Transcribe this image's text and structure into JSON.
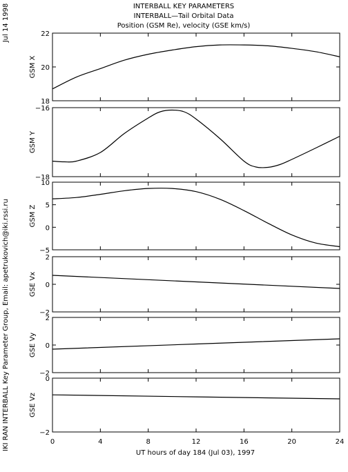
{
  "header": {
    "date_stamp": "Jul 14 1998",
    "title_line1": "INTERBALL KEY PARAMETERS",
    "title_line2": "INTERBALL—Tail Orbital Data",
    "title_line3": "Position (GSM Re), velocity (GSE km/s)"
  },
  "side_credit": "IKI RAN INTERBALL Key Parameter Group, Email: apetrukovich@iki.rssi.ru",
  "xaxis": {
    "label": "UT hours of day 184 (Jul 03), 1997",
    "ticks": [
      0,
      4,
      8,
      12,
      16,
      20,
      24
    ],
    "tick_labels": [
      "0",
      "4",
      "8",
      "12",
      "16",
      "20",
      "24"
    ],
    "range": [
      0,
      24
    ]
  },
  "chart_data": [
    {
      "type": "line",
      "ylabel": "GSM X",
      "ylim": [
        18,
        22
      ],
      "yticks": [
        18,
        20,
        22
      ],
      "ytick_labels": [
        "18",
        "20",
        "22"
      ],
      "series": [
        {
          "x": [
            0,
            2,
            4,
            6,
            8,
            10,
            12,
            14,
            16,
            18,
            20,
            22,
            24
          ],
          "y": [
            18.7,
            19.4,
            19.9,
            20.4,
            20.75,
            21.0,
            21.2,
            21.3,
            21.3,
            21.25,
            21.1,
            20.9,
            20.6
          ]
        }
      ]
    },
    {
      "type": "line",
      "ylabel": "GSM Y",
      "ylim": [
        -18,
        -16
      ],
      "yticks": [
        -18,
        -16
      ],
      "ytick_labels": [
        "−18",
        "−16"
      ],
      "series": [
        {
          "x": [
            0,
            1,
            2,
            4,
            6,
            8,
            9,
            10,
            11,
            12,
            14,
            16,
            17,
            18,
            19,
            20,
            22,
            24
          ],
          "y": [
            -17.55,
            -17.57,
            -17.55,
            -17.3,
            -16.75,
            -16.3,
            -16.12,
            -16.07,
            -16.12,
            -16.33,
            -16.9,
            -17.55,
            -17.72,
            -17.73,
            -17.65,
            -17.5,
            -17.17,
            -16.83
          ]
        }
      ]
    },
    {
      "type": "line",
      "ylabel": "GSM Z",
      "ylim": [
        -5,
        10
      ],
      "yticks": [
        -5,
        0,
        5,
        10
      ],
      "ytick_labels": [
        "−5",
        "0",
        "5",
        "10"
      ],
      "series": [
        {
          "x": [
            0,
            2,
            4,
            6,
            8,
            10,
            12,
            14,
            16,
            18,
            20,
            22,
            24
          ],
          "y": [
            6.3,
            6.6,
            7.3,
            8.1,
            8.6,
            8.6,
            7.9,
            6.2,
            3.7,
            0.9,
            -1.7,
            -3.5,
            -4.3
          ]
        }
      ]
    },
    {
      "type": "line",
      "ylabel": "GSE Vx",
      "ylim": [
        -2,
        2
      ],
      "yticks": [
        -2,
        0,
        2
      ],
      "ytick_labels": [
        "−2",
        "0",
        "2"
      ],
      "series": [
        {
          "x": [
            0,
            24
          ],
          "y": [
            0.65,
            -0.3
          ]
        }
      ]
    },
    {
      "type": "line",
      "ylabel": "GSE Vy",
      "ylim": [
        -2,
        2
      ],
      "yticks": [
        -2,
        0,
        2
      ],
      "ytick_labels": [
        "−2",
        "0",
        "2"
      ],
      "series": [
        {
          "x": [
            0,
            24
          ],
          "y": [
            -0.3,
            0.45
          ]
        }
      ]
    },
    {
      "type": "line",
      "ylabel": "GSE Vz",
      "ylim": [
        -2,
        0
      ],
      "yticks": [
        -2,
        0
      ],
      "ytick_labels": [
        "−2",
        "0"
      ],
      "series": [
        {
          "x": [
            0,
            24
          ],
          "y": [
            -0.62,
            -0.77
          ]
        }
      ]
    }
  ]
}
